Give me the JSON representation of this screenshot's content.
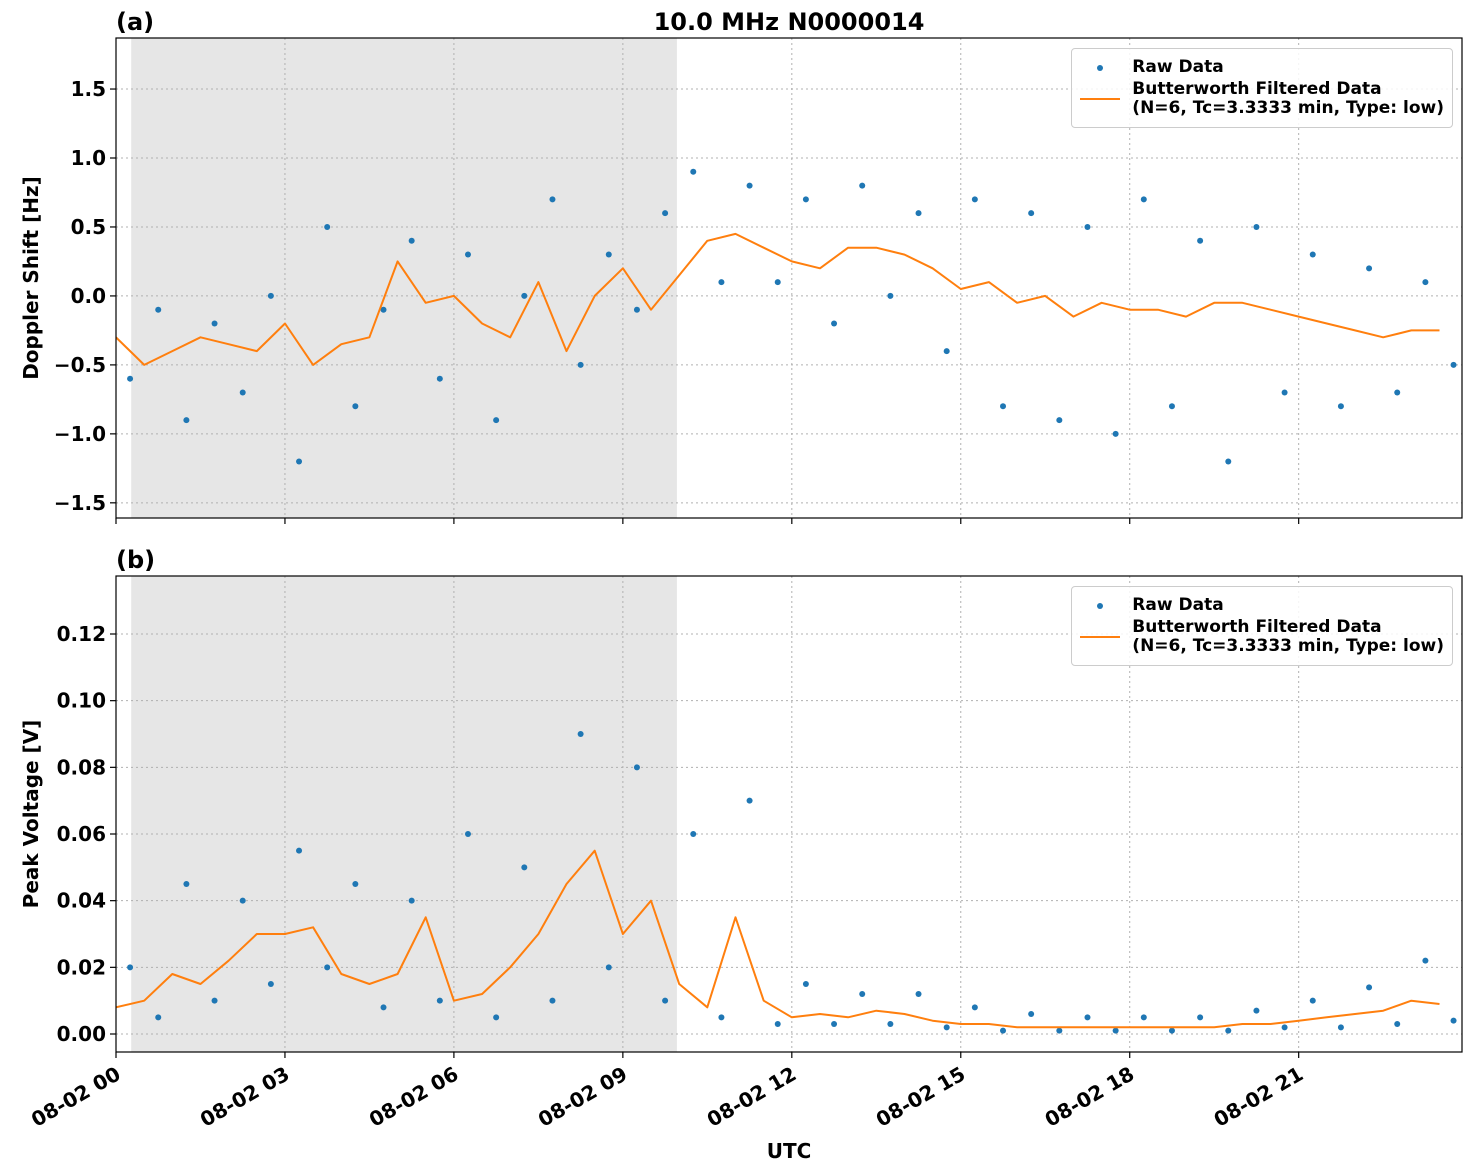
{
  "chart_data": [
    {
      "type": "line",
      "panel_label": "(a)",
      "title": "10.0 MHz N0000014",
      "ylabel": "Doppler Shift [Hz]",
      "xlim": [
        0,
        23.9
      ],
      "xticks": [
        0,
        3,
        6,
        9,
        12,
        15,
        18,
        21
      ],
      "ylim": [
        -1.61,
        1.87
      ],
      "yticks": [
        {
          "value": -1.5,
          "label": "−1.5"
        },
        {
          "value": -1.0,
          "label": "−1.0"
        },
        {
          "value": -0.5,
          "label": "−0.5"
        },
        {
          "value": 0,
          "label": "0.0"
        },
        {
          "value": 0.5,
          "label": "0.5"
        },
        {
          "value": 1.0,
          "label": "1.0"
        },
        {
          "value": 1.5,
          "label": "1.5"
        }
      ],
      "shade": [
        0.27,
        9.96
      ],
      "grid": true,
      "legend": "upper right",
      "series": [
        {
          "name": "Raw Data",
          "type": "scatter",
          "color": "#1f77b4",
          "x": [
            0.25,
            0.75,
            1.25,
            1.75,
            2.25,
            2.75,
            3.25,
            3.75,
            4.25,
            4.75,
            5.25,
            5.75,
            6.25,
            6.75,
            7.25,
            7.75,
            8.25,
            8.75,
            9.25,
            9.75,
            10.25,
            10.75,
            11.25,
            11.75,
            12.25,
            12.75,
            13.25,
            13.75,
            14.25,
            14.75,
            15.25,
            15.75,
            16.25,
            16.75,
            17.25,
            17.75,
            18.25,
            18.75,
            19.25,
            19.75,
            20.25,
            20.75,
            21.25,
            21.75,
            22.25,
            22.75,
            23.25,
            23.75
          ],
          "values": [
            -0.6,
            -0.1,
            -0.9,
            -0.2,
            -0.7,
            0.0,
            -1.2,
            0.5,
            -0.8,
            -0.1,
            0.4,
            -0.6,
            0.3,
            -0.9,
            0.0,
            0.7,
            -0.5,
            0.3,
            -0.1,
            0.6,
            0.9,
            0.1,
            0.8,
            0.1,
            0.7,
            -0.2,
            0.8,
            0.0,
            0.6,
            -0.4,
            0.7,
            -0.8,
            0.6,
            -0.9,
            0.5,
            -1.0,
            0.7,
            -0.8,
            0.4,
            -1.2,
            0.5,
            -0.7,
            0.3,
            -0.8,
            0.2,
            -0.7,
            0.1,
            -0.5
          ]
        },
        {
          "name": "Butterworth Filtered Data\n(N=6, Tc=3.3333 min, Type: low)",
          "type": "line",
          "color": "#ff7f0e",
          "x": [
            0,
            0.5,
            1,
            1.5,
            2,
            2.5,
            3,
            3.5,
            4,
            4.5,
            5,
            5.5,
            6,
            6.5,
            7,
            7.5,
            8,
            8.5,
            9,
            9.5,
            10,
            10.5,
            11,
            11.5,
            12,
            12.5,
            13,
            13.5,
            14,
            14.5,
            15,
            15.5,
            16,
            16.5,
            17,
            17.5,
            18,
            18.5,
            19,
            19.5,
            20,
            20.5,
            21,
            21.5,
            22,
            22.5,
            23,
            23.5
          ],
          "values": [
            -0.3,
            -0.5,
            -0.4,
            -0.3,
            -0.35,
            -0.4,
            -0.2,
            -0.5,
            -0.35,
            -0.3,
            0.25,
            -0.05,
            0.0,
            -0.2,
            -0.3,
            0.1,
            -0.4,
            0.0,
            0.2,
            -0.1,
            0.15,
            0.4,
            0.45,
            0.35,
            0.25,
            0.2,
            0.35,
            0.35,
            0.3,
            0.2,
            0.05,
            0.1,
            -0.05,
            0.0,
            -0.15,
            -0.05,
            -0.1,
            -0.1,
            -0.15,
            -0.05,
            -0.05,
            -0.1,
            -0.15,
            -0.2,
            -0.25,
            -0.3,
            -0.25,
            -0.25
          ]
        }
      ]
    },
    {
      "type": "line",
      "panel_label": "(b)",
      "ylabel": "Peak Voltage [V]",
      "xlabel": "UTC",
      "xlim": [
        0,
        23.9
      ],
      "xticks": [
        {
          "value": 0,
          "label": "08-02 00"
        },
        {
          "value": 3,
          "label": "08-02 03"
        },
        {
          "value": 6,
          "label": "08-02 06"
        },
        {
          "value": 9,
          "label": "08-02 09"
        },
        {
          "value": 12,
          "label": "08-02 12"
        },
        {
          "value": 15,
          "label": "08-02 15"
        },
        {
          "value": 18,
          "label": "08-02 18"
        },
        {
          "value": 21,
          "label": "08-02 21"
        }
      ],
      "ylim": [
        -0.0054,
        0.1374
      ],
      "yticks": [
        {
          "value": 0,
          "label": "0.00"
        },
        {
          "value": 0.02,
          "label": "0.02"
        },
        {
          "value": 0.04,
          "label": "0.04"
        },
        {
          "value": 0.06,
          "label": "0.06"
        },
        {
          "value": 0.08,
          "label": "0.08"
        },
        {
          "value": 0.1,
          "label": "0.10"
        },
        {
          "value": 0.12,
          "label": "0.12"
        }
      ],
      "shade": [
        0.27,
        9.96
      ],
      "grid": true,
      "legend": "upper right",
      "series": [
        {
          "name": "Raw Data",
          "type": "scatter",
          "color": "#1f77b4",
          "x": [
            0.25,
            0.75,
            1.25,
            1.75,
            2.25,
            2.75,
            3.25,
            3.75,
            4.25,
            4.75,
            5.25,
            5.75,
            6.25,
            6.75,
            7.25,
            7.75,
            8.25,
            8.75,
            9.25,
            9.75,
            10.25,
            10.75,
            11.25,
            11.75,
            12.25,
            12.75,
            13.25,
            13.75,
            14.25,
            14.75,
            15.25,
            15.75,
            16.25,
            16.75,
            17.25,
            17.75,
            18.25,
            18.75,
            19.25,
            19.75,
            20.25,
            20.75,
            21.25,
            21.75,
            22.25,
            22.75,
            23.25,
            23.75
          ],
          "values": [
            0.02,
            0.005,
            0.045,
            0.01,
            0.04,
            0.015,
            0.055,
            0.02,
            0.045,
            0.008,
            0.04,
            0.01,
            0.06,
            0.005,
            0.05,
            0.01,
            0.09,
            0.02,
            0.08,
            0.01,
            0.06,
            0.005,
            0.07,
            0.003,
            0.015,
            0.003,
            0.012,
            0.003,
            0.012,
            0.002,
            0.008,
            0.001,
            0.006,
            0.001,
            0.005,
            0.001,
            0.005,
            0.001,
            0.005,
            0.001,
            0.007,
            0.002,
            0.01,
            0.002,
            0.014,
            0.003,
            0.022,
            0.004
          ]
        },
        {
          "name": "Butterworth Filtered Data\n(N=6, Tc=3.3333 min, Type: low)",
          "type": "line",
          "color": "#ff7f0e",
          "x": [
            0,
            0.5,
            1,
            1.5,
            2,
            2.5,
            3,
            3.5,
            4,
            4.5,
            5,
            5.5,
            6,
            6.5,
            7,
            7.5,
            8,
            8.5,
            9,
            9.5,
            10,
            10.5,
            11,
            11.5,
            12,
            12.5,
            13,
            13.5,
            14,
            14.5,
            15,
            15.5,
            16,
            16.5,
            17,
            17.5,
            18,
            18.5,
            19,
            19.5,
            20,
            20.5,
            21,
            21.5,
            22,
            22.5,
            23,
            23.5
          ],
          "values": [
            0.008,
            0.01,
            0.018,
            0.015,
            0.022,
            0.03,
            0.03,
            0.032,
            0.018,
            0.015,
            0.018,
            0.035,
            0.01,
            0.012,
            0.02,
            0.03,
            0.045,
            0.055,
            0.03,
            0.04,
            0.015,
            0.008,
            0.035,
            0.01,
            0.005,
            0.006,
            0.005,
            0.007,
            0.006,
            0.004,
            0.003,
            0.003,
            0.002,
            0.002,
            0.002,
            0.002,
            0.002,
            0.002,
            0.002,
            0.002,
            0.003,
            0.003,
            0.004,
            0.005,
            0.006,
            0.007,
            0.01,
            0.009
          ]
        }
      ]
    }
  ]
}
